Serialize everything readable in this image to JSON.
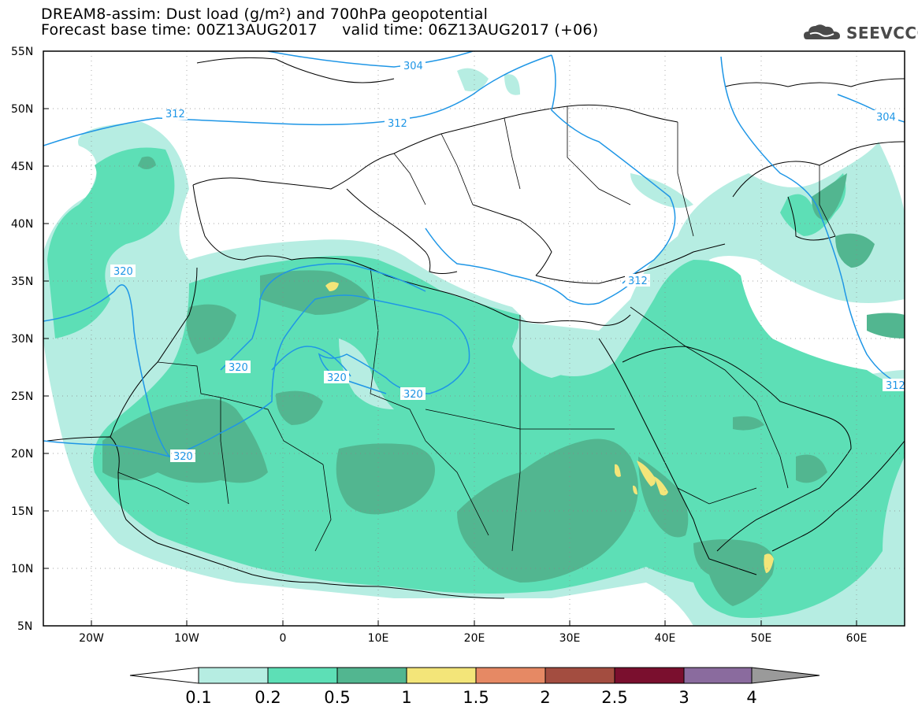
{
  "header": {
    "title_line1": "DREAM8-assim: Dust load (g/m²) and 700hPa geopotential",
    "title_line2": "Forecast base time: 00Z13AUG2017     valid time: 06Z13AUG2017 (+06)"
  },
  "logo": {
    "text": "SEEVCCC",
    "icon": "cloud-icon"
  },
  "map": {
    "lat_labels": [
      "55N",
      "50N",
      "45N",
      "40N",
      "35N",
      "30N",
      "25N",
      "20N",
      "15N",
      "10N",
      "5N"
    ],
    "lon_labels": [
      "20W",
      "10W",
      "0",
      "10E",
      "20E",
      "30E",
      "40E",
      "50E",
      "60E"
    ],
    "contour_labels": [
      "304",
      "312",
      "312",
      "304",
      "320",
      "312",
      "320",
      "320",
      "320",
      "320",
      "312"
    ]
  },
  "colorbar": {
    "labels": [
      "0.1",
      "0.2",
      "0.5",
      "1",
      "1.5",
      "2",
      "2.5",
      "3",
      "4"
    ],
    "colors": [
      "#ffffff",
      "#b6ede2",
      "#5ddfb6",
      "#52b690",
      "#f3e579",
      "#e68964",
      "#a34d40",
      "#7a0f2e",
      "#8a6b9e",
      "#9a9a9a"
    ]
  },
  "colors": {
    "dust_light": "#b6ede2",
    "dust_medium": "#5ddfb6",
    "dust_dark": "#52b690",
    "dust_yellow": "#f3e579",
    "contour": "#1e96e6"
  }
}
